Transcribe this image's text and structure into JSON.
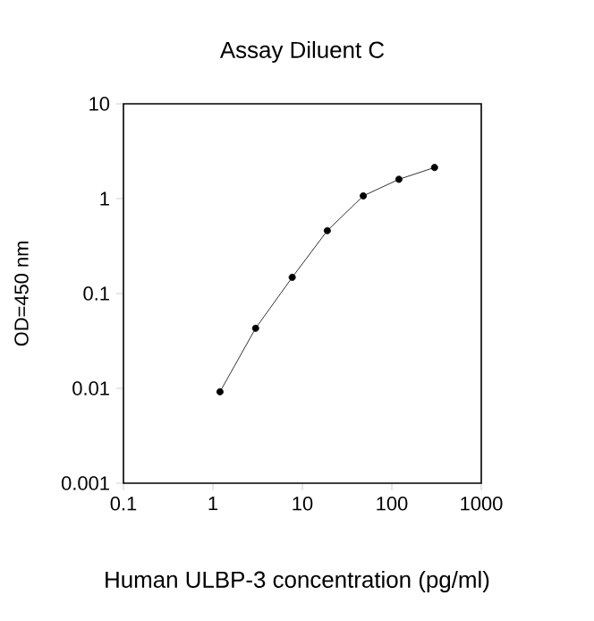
{
  "chart_data": {
    "type": "line",
    "title": "Assay Diluent C",
    "xlabel": "Human ULBP-3 concentration (pg/ml)",
    "ylabel": "OD=450 nm",
    "x": [
      1.2,
      3,
      7.7,
      19,
      48,
      120,
      300
    ],
    "series": [
      {
        "color": "#000000",
        "values": [
          0.0092,
          0.043,
          0.148,
          0.46,
          1.07,
          1.6,
          2.13
        ]
      }
    ],
    "log": "xy",
    "xlim": [
      0.1,
      1000
    ],
    "ylim": [
      0.001,
      10
    ],
    "xticks": [
      0.1,
      1,
      10,
      100,
      1000
    ],
    "yticks": [
      0.001,
      0.01,
      0.1,
      1,
      10
    ],
    "marker": "circle",
    "line_style": "solid"
  }
}
